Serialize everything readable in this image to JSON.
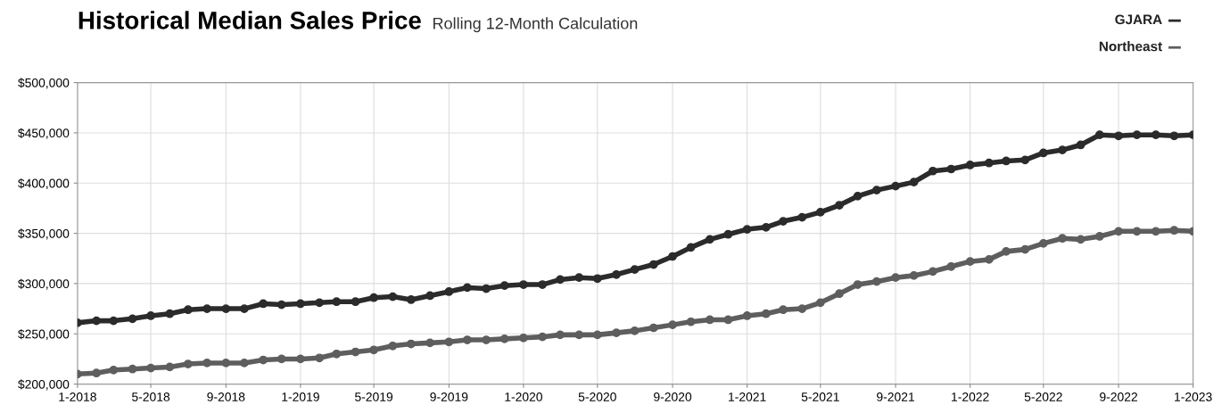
{
  "chart_data": {
    "type": "line",
    "title": "Historical Median Sales Price",
    "subtitle": "Rolling 12-Month Calculation",
    "x": [
      "2018-01",
      "2018-02",
      "2018-03",
      "2018-04",
      "2018-05",
      "2018-06",
      "2018-07",
      "2018-08",
      "2018-09",
      "2018-10",
      "2018-11",
      "2018-12",
      "2019-01",
      "2019-02",
      "2019-03",
      "2019-04",
      "2019-05",
      "2019-06",
      "2019-07",
      "2019-08",
      "2019-09",
      "2019-10",
      "2019-11",
      "2019-12",
      "2020-01",
      "2020-02",
      "2020-03",
      "2020-04",
      "2020-05",
      "2020-06",
      "2020-07",
      "2020-08",
      "2020-09",
      "2020-10",
      "2020-11",
      "2020-12",
      "2021-01",
      "2021-02",
      "2021-03",
      "2021-04",
      "2021-05",
      "2021-06",
      "2021-07",
      "2021-08",
      "2021-09",
      "2021-10",
      "2021-11",
      "2021-12",
      "2022-01",
      "2022-02",
      "2022-03",
      "2022-04",
      "2022-05",
      "2022-06",
      "2022-07",
      "2022-08",
      "2022-09",
      "2022-10",
      "2022-11",
      "2022-12",
      "2023-01"
    ],
    "series": [
      {
        "name": "GJARA",
        "color": "#2b2b2b",
        "values": [
          261000,
          263000,
          263000,
          265000,
          268000,
          270000,
          274000,
          275000,
          275000,
          275000,
          280000,
          279000,
          280000,
          281000,
          282000,
          282000,
          286000,
          287000,
          284000,
          288000,
          292000,
          296000,
          295000,
          298000,
          299000,
          299000,
          304000,
          306000,
          305000,
          309000,
          314000,
          319000,
          327000,
          336000,
          344000,
          349000,
          354000,
          356000,
          362000,
          366000,
          371000,
          378000,
          387000,
          393000,
          397000,
          401000,
          412000,
          414000,
          418000,
          420000,
          422000,
          423000,
          430000,
          433000,
          438000,
          448000,
          447000,
          448000,
          448000,
          447000,
          448000
        ]
      },
      {
        "name": "Northeast",
        "color": "#5e5e5e",
        "values": [
          210000,
          211000,
          214000,
          215000,
          216000,
          217000,
          220000,
          221000,
          221000,
          221000,
          224000,
          225000,
          225000,
          226000,
          230000,
          232000,
          234000,
          238000,
          240000,
          241000,
          242000,
          244000,
          244000,
          245000,
          246000,
          247000,
          249000,
          249000,
          249000,
          251000,
          253000,
          256000,
          259000,
          262000,
          264000,
          264000,
          268000,
          270000,
          274000,
          275000,
          281000,
          290000,
          299000,
          302000,
          306000,
          308000,
          312000,
          317000,
          322000,
          324000,
          332000,
          334000,
          340000,
          345000,
          344000,
          347000,
          352000,
          352000,
          352000,
          353000,
          352000
        ]
      }
    ],
    "xlim": [
      "2018-01",
      "2023-01"
    ],
    "xticks": [
      {
        "value": "2018-01",
        "label": "1-2018"
      },
      {
        "value": "2018-05",
        "label": "5-2018"
      },
      {
        "value": "2018-09",
        "label": "9-2018"
      },
      {
        "value": "2019-01",
        "label": "1-2019"
      },
      {
        "value": "2019-05",
        "label": "5-2019"
      },
      {
        "value": "2019-09",
        "label": "9-2019"
      },
      {
        "value": "2020-01",
        "label": "1-2020"
      },
      {
        "value": "2020-05",
        "label": "5-2020"
      },
      {
        "value": "2020-09",
        "label": "9-2020"
      },
      {
        "value": "2021-01",
        "label": "1-2021"
      },
      {
        "value": "2021-05",
        "label": "5-2021"
      },
      {
        "value": "2021-09",
        "label": "9-2021"
      },
      {
        "value": "2022-01",
        "label": "1-2022"
      },
      {
        "value": "2022-05",
        "label": "5-2022"
      },
      {
        "value": "2022-09",
        "label": "9-2022"
      },
      {
        "value": "2023-01",
        "label": "1-2023"
      }
    ],
    "ylim": [
      200000,
      500000
    ],
    "yticks": [
      {
        "value": 200000,
        "label": "$200,000"
      },
      {
        "value": 250000,
        "label": "$250,000"
      },
      {
        "value": 300000,
        "label": "$300,000"
      },
      {
        "value": 350000,
        "label": "$350,000"
      },
      {
        "value": 400000,
        "label": "$400,000"
      },
      {
        "value": 450000,
        "label": "$450,000"
      },
      {
        "value": 500000,
        "label": "$500,000"
      }
    ],
    "grid": true,
    "legend": "top right",
    "marker": "circle",
    "line_style": "solid"
  }
}
